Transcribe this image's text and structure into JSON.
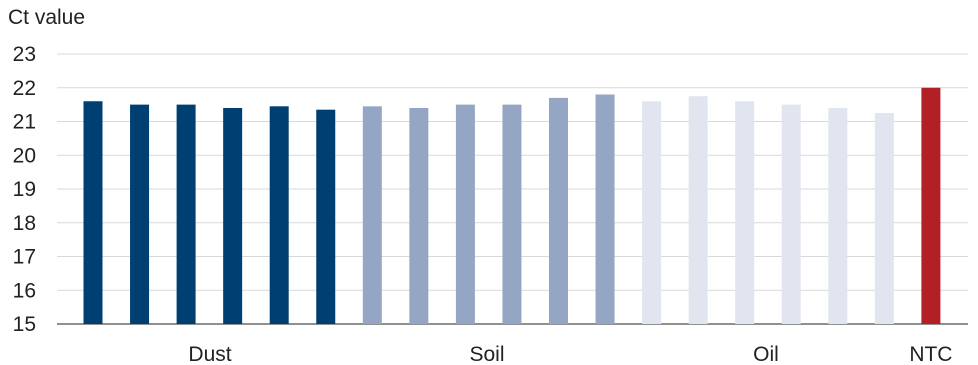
{
  "chart_data": {
    "type": "bar",
    "title": "",
    "ylabel": "Ct value",
    "xlabel": "",
    "ylim": [
      15,
      23
    ],
    "yticks": [
      15,
      16,
      17,
      18,
      19,
      20,
      21,
      22,
      23
    ],
    "grid": true,
    "legend": "none",
    "groups": [
      {
        "name": "Dust",
        "color": "#003f72",
        "values": [
          21.6,
          21.5,
          21.5,
          21.4,
          21.45,
          21.35
        ]
      },
      {
        "name": "Soil",
        "color": "#94a6c4",
        "values": [
          21.45,
          21.4,
          21.5,
          21.5,
          21.7,
          21.8
        ]
      },
      {
        "name": "Oil",
        "color": "#e1e5f0",
        "values": [
          21.6,
          21.75,
          21.6,
          21.5,
          21.4,
          21.25
        ]
      },
      {
        "name": "NTC",
        "color": "#b21f24",
        "values": [
          22.0
        ]
      }
    ]
  }
}
